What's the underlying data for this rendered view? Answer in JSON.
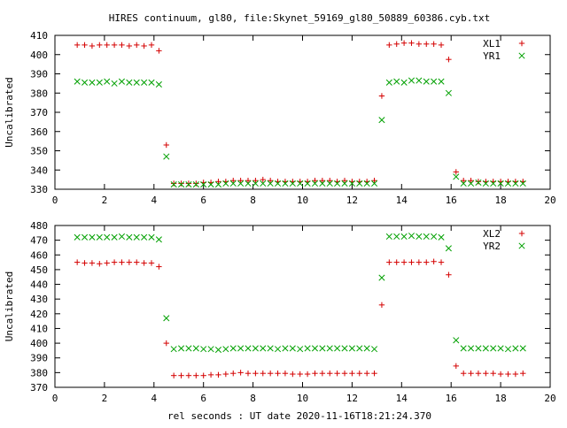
{
  "title": "HIRES continuum, gl80, file:Skynet_59169_gl80_50889_60386.cyb.txt",
  "xlabel": "rel seconds : UT date 2020-11-16T18:21:24.370",
  "chart_data": [
    {
      "type": "scatter",
      "ylabel": "Uncalibrated",
      "xlim": [
        0,
        20
      ],
      "ylim": [
        330,
        410
      ],
      "xticks": [
        0,
        2,
        4,
        6,
        8,
        10,
        12,
        14,
        16,
        18,
        20
      ],
      "yticks": [
        330,
        340,
        350,
        360,
        370,
        380,
        390,
        400,
        410
      ],
      "legend_position": "top-right",
      "series": [
        {
          "name": "XL1",
          "color": "#d40000",
          "marker": "plus",
          "x": [
            0.9,
            1.2,
            1.5,
            1.8,
            2.1,
            2.4,
            2.7,
            3.0,
            3.3,
            3.6,
            3.9,
            4.2,
            4.5,
            4.8,
            5.1,
            5.4,
            5.7,
            6.0,
            6.3,
            6.6,
            6.9,
            7.2,
            7.5,
            7.8,
            8.1,
            8.4,
            8.7,
            9.0,
            9.3,
            9.6,
            9.9,
            10.2,
            10.5,
            10.8,
            11.1,
            11.4,
            11.7,
            12.0,
            12.3,
            12.6,
            12.9,
            13.2,
            13.5,
            13.8,
            14.1,
            14.4,
            14.7,
            15.0,
            15.3,
            15.6,
            15.9,
            16.2,
            16.5,
            16.8,
            17.1,
            17.4,
            17.7,
            18.0,
            18.3,
            18.6,
            18.9
          ],
          "y": [
            405,
            405,
            404.5,
            405,
            405,
            405,
            405,
            404.5,
            405,
            404.5,
            405,
            402,
            353,
            333,
            333,
            333,
            333,
            333.5,
            333.5,
            334,
            334,
            334.5,
            334.5,
            334.5,
            334.5,
            335,
            334.5,
            334,
            334,
            334,
            334,
            334,
            334.5,
            334.5,
            334.5,
            334,
            334.5,
            334,
            334,
            334,
            334.5,
            378.5,
            405,
            405.5,
            406,
            406,
            405.5,
            405.5,
            405.5,
            405,
            397.5,
            339,
            334.5,
            334.5,
            334,
            334,
            334,
            334,
            334,
            334,
            334
          ]
        },
        {
          "name": "YR1",
          "color": "#00a000",
          "marker": "cross",
          "x": [
            0.9,
            1.2,
            1.5,
            1.8,
            2.1,
            2.4,
            2.7,
            3.0,
            3.3,
            3.6,
            3.9,
            4.2,
            4.5,
            4.8,
            5.1,
            5.4,
            5.7,
            6.0,
            6.3,
            6.6,
            6.9,
            7.2,
            7.5,
            7.8,
            8.1,
            8.4,
            8.7,
            9.0,
            9.3,
            9.6,
            9.9,
            10.2,
            10.5,
            10.8,
            11.1,
            11.4,
            11.7,
            12.0,
            12.3,
            12.6,
            12.9,
            13.2,
            13.5,
            13.8,
            14.1,
            14.4,
            14.7,
            15.0,
            15.3,
            15.6,
            15.9,
            16.2,
            16.5,
            16.8,
            17.1,
            17.4,
            17.7,
            18.0,
            18.3,
            18.6,
            18.9
          ],
          "y": [
            386,
            385.5,
            385.5,
            385.5,
            386,
            385,
            386,
            385.5,
            385.5,
            385.5,
            385.5,
            384.5,
            347,
            332.5,
            332.5,
            332.5,
            332.5,
            332.5,
            332.5,
            332.5,
            333,
            333,
            333,
            333,
            333,
            333,
            333,
            333,
            333,
            333,
            333,
            333,
            333,
            333,
            333,
            333,
            333,
            333,
            333,
            333,
            333,
            366,
            385.5,
            386,
            385.5,
            386.5,
            386.5,
            386,
            386,
            386,
            380,
            336.5,
            333,
            333,
            333.5,
            333,
            333,
            333,
            333,
            333,
            333
          ]
        }
      ]
    },
    {
      "type": "scatter",
      "ylabel": "Uncalibrated",
      "xlim": [
        0,
        20
      ],
      "ylim": [
        370,
        480
      ],
      "xticks": [
        0,
        2,
        4,
        6,
        8,
        10,
        12,
        14,
        16,
        18,
        20
      ],
      "yticks": [
        370,
        380,
        390,
        400,
        410,
        420,
        430,
        440,
        450,
        460,
        470,
        480
      ],
      "legend_position": "top-right",
      "series": [
        {
          "name": "XL2",
          "color": "#d40000",
          "marker": "plus",
          "x": [
            0.9,
            1.2,
            1.5,
            1.8,
            2.1,
            2.4,
            2.7,
            3.0,
            3.3,
            3.6,
            3.9,
            4.2,
            4.5,
            4.8,
            5.1,
            5.4,
            5.7,
            6.0,
            6.3,
            6.6,
            6.9,
            7.2,
            7.5,
            7.8,
            8.1,
            8.4,
            8.7,
            9.0,
            9.3,
            9.6,
            9.9,
            10.2,
            10.5,
            10.8,
            11.1,
            11.4,
            11.7,
            12.0,
            12.3,
            12.6,
            12.9,
            13.2,
            13.5,
            13.8,
            14.1,
            14.4,
            14.7,
            15.0,
            15.3,
            15.6,
            15.9,
            16.2,
            16.5,
            16.8,
            17.1,
            17.4,
            17.7,
            18.0,
            18.3,
            18.6,
            18.9
          ],
          "y": [
            455,
            454.5,
            454.5,
            454,
            454.5,
            455,
            455,
            455,
            455,
            454.5,
            454.5,
            452,
            400,
            378,
            378,
            378,
            378,
            378,
            378.5,
            378.5,
            379,
            379.5,
            380,
            379.5,
            379.5,
            379.5,
            379.5,
            379.5,
            379.5,
            379,
            379,
            379,
            379.5,
            379.5,
            379.5,
            379.5,
            379.5,
            379.5,
            379.5,
            379.5,
            379.5,
            426,
            455,
            455,
            455,
            455,
            455,
            455,
            455.5,
            455,
            446.5,
            384.5,
            379.5,
            379.5,
            379.5,
            379.5,
            379.5,
            379,
            379,
            379,
            379.5
          ]
        },
        {
          "name": "YR2",
          "color": "#00a000",
          "marker": "cross",
          "x": [
            0.9,
            1.2,
            1.5,
            1.8,
            2.1,
            2.4,
            2.7,
            3.0,
            3.3,
            3.6,
            3.9,
            4.2,
            4.5,
            4.8,
            5.1,
            5.4,
            5.7,
            6.0,
            6.3,
            6.6,
            6.9,
            7.2,
            7.5,
            7.8,
            8.1,
            8.4,
            8.7,
            9.0,
            9.3,
            9.6,
            9.9,
            10.2,
            10.5,
            10.8,
            11.1,
            11.4,
            11.7,
            12.0,
            12.3,
            12.6,
            12.9,
            13.2,
            13.5,
            13.8,
            14.1,
            14.4,
            14.7,
            15.0,
            15.3,
            15.6,
            15.9,
            16.2,
            16.5,
            16.8,
            17.1,
            17.4,
            17.7,
            18.0,
            18.3,
            18.6,
            18.9
          ],
          "y": [
            472,
            472,
            472,
            472,
            472,
            472,
            472.5,
            472,
            472,
            472,
            472,
            470.5,
            417,
            396,
            396.5,
            396.5,
            396.5,
            396,
            396,
            395.5,
            396,
            396.5,
            396.5,
            396.5,
            396.5,
            396.5,
            396.5,
            396,
            396.5,
            396.5,
            396,
            396.5,
            396.5,
            396.5,
            396.5,
            396.5,
            396.5,
            396.5,
            396.5,
            396.5,
            396,
            444.5,
            472.5,
            472.5,
            472.5,
            473,
            472.5,
            472.5,
            472.5,
            472,
            464.5,
            402,
            396.5,
            396.5,
            396.5,
            396.5,
            396.5,
            396.5,
            396,
            396.5,
            396.5
          ]
        }
      ]
    }
  ]
}
